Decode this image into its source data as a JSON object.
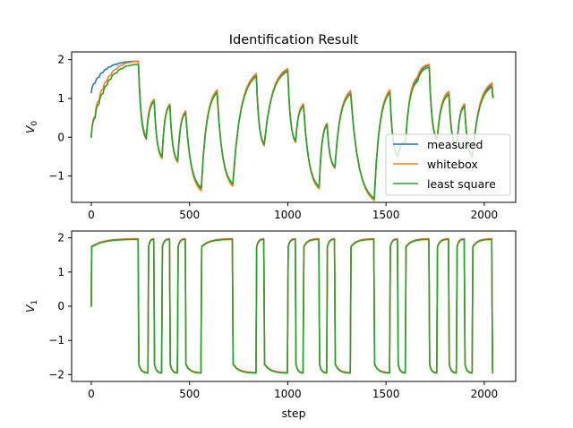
{
  "chart_data": [
    {
      "type": "line",
      "title": "Identification Result",
      "xlabel": "",
      "ylabel": "V",
      "ylabel_sub": "0",
      "xlim": [
        -100,
        2160
      ],
      "ylim": [
        -1.68,
        2.2
      ],
      "xticks": [
        0,
        500,
        1000,
        1500,
        2000
      ],
      "yticks": [
        -1,
        0,
        1,
        2
      ],
      "xtick_labels": [
        "0",
        "500",
        "1000",
        "1500",
        "2000"
      ],
      "ytick_labels": [
        "−1",
        "0",
        "1",
        "2"
      ],
      "legend": "lower right",
      "series": [
        {
          "name": "measured",
          "color": "#1f77b4",
          "points": [
            [
              0,
              1.15
            ],
            [
              20,
              1.4
            ],
            [
              40,
              1.55
            ],
            [
              60,
              1.67
            ],
            [
              80,
              1.76
            ],
            [
              100,
              1.82
            ],
            [
              130,
              1.88
            ],
            [
              160,
              1.92
            ],
            [
              200,
              1.95
            ],
            [
              240,
              1.96
            ],
            [
              280,
              0.02
            ],
            [
              320,
              0.96
            ],
            [
              360,
              -0.52
            ],
            [
              400,
              0.85
            ],
            [
              440,
              -0.63
            ],
            [
              480,
              0.66
            ],
            [
              560,
              -1.35
            ],
            [
              640,
              1.2
            ],
            [
              720,
              -1.23
            ],
            [
              840,
              1.62
            ],
            [
              880,
              -0.2
            ],
            [
              1000,
              1.75
            ],
            [
              1040,
              -0.12
            ],
            [
              1080,
              0.85
            ],
            [
              1160,
              -1.3
            ],
            [
              1200,
              0.36
            ],
            [
              1240,
              -0.78
            ],
            [
              1320,
              1.18
            ],
            [
              1440,
              -1.6
            ],
            [
              1520,
              1.2
            ],
            [
              1560,
              -0.5
            ],
            [
              1600,
              -0.12
            ],
            [
              1660,
              1.5
            ],
            [
              1720,
              1.85
            ],
            [
              1760,
              -0.05
            ],
            [
              1820,
              1.16
            ],
            [
              1860,
              -0.3
            ],
            [
              1900,
              0.85
            ],
            [
              1940,
              -0.5
            ],
            [
              2040,
              1.35
            ],
            [
              2045,
              1.05
            ]
          ]
        },
        {
          "name": "whitebox",
          "color": "#ff7f0e",
          "points": [
            [
              0,
              0.0
            ],
            [
              20,
              0.55
            ],
            [
              40,
              0.95
            ],
            [
              60,
              1.24
            ],
            [
              80,
              1.45
            ],
            [
              100,
              1.6
            ],
            [
              130,
              1.76
            ],
            [
              160,
              1.86
            ],
            [
              200,
              1.93
            ],
            [
              240,
              1.96
            ],
            [
              280,
              0.0
            ],
            [
              320,
              0.98
            ],
            [
              360,
              -0.55
            ],
            [
              400,
              0.86
            ],
            [
              440,
              -0.65
            ],
            [
              480,
              0.68
            ],
            [
              560,
              -1.38
            ],
            [
              640,
              1.22
            ],
            [
              720,
              -1.26
            ],
            [
              840,
              1.64
            ],
            [
              880,
              -0.22
            ],
            [
              1000,
              1.77
            ],
            [
              1040,
              -0.14
            ],
            [
              1080,
              0.86
            ],
            [
              1160,
              -1.33
            ],
            [
              1200,
              0.36
            ],
            [
              1240,
              -0.8
            ],
            [
              1320,
              1.2
            ],
            [
              1440,
              -1.63
            ],
            [
              1520,
              1.22
            ],
            [
              1560,
              -0.52
            ],
            [
              1600,
              -0.14
            ],
            [
              1660,
              1.55
            ],
            [
              1720,
              1.88
            ],
            [
              1760,
              -0.06
            ],
            [
              1820,
              1.18
            ],
            [
              1860,
              -0.32
            ],
            [
              1900,
              0.86
            ],
            [
              1940,
              -0.52
            ],
            [
              2040,
              1.4
            ],
            [
              2045,
              1.08
            ]
          ]
        },
        {
          "name": "least square",
          "color": "#2ca02c",
          "points": [
            [
              0,
              0.0
            ],
            [
              20,
              0.5
            ],
            [
              40,
              0.86
            ],
            [
              60,
              1.13
            ],
            [
              80,
              1.34
            ],
            [
              100,
              1.5
            ],
            [
              130,
              1.66
            ],
            [
              160,
              1.77
            ],
            [
              200,
              1.85
            ],
            [
              240,
              1.88
            ],
            [
              280,
              -0.05
            ],
            [
              320,
              0.92
            ],
            [
              360,
              -0.5
            ],
            [
              400,
              0.82
            ],
            [
              440,
              -0.6
            ],
            [
              480,
              0.63
            ],
            [
              560,
              -1.3
            ],
            [
              640,
              1.15
            ],
            [
              720,
              -1.2
            ],
            [
              840,
              1.57
            ],
            [
              880,
              -0.18
            ],
            [
              1000,
              1.7
            ],
            [
              1040,
              -0.1
            ],
            [
              1080,
              0.8
            ],
            [
              1160,
              -1.27
            ],
            [
              1200,
              0.32
            ],
            [
              1240,
              -0.76
            ],
            [
              1320,
              1.12
            ],
            [
              1440,
              -1.58
            ],
            [
              1520,
              1.15
            ],
            [
              1560,
              -0.48
            ],
            [
              1600,
              -0.1
            ],
            [
              1660,
              1.44
            ],
            [
              1720,
              1.8
            ],
            [
              1760,
              -0.08
            ],
            [
              1820,
              1.1
            ],
            [
              1860,
              -0.28
            ],
            [
              1900,
              0.8
            ],
            [
              1940,
              -0.48
            ],
            [
              2040,
              1.3
            ],
            [
              2045,
              1.02
            ]
          ]
        }
      ]
    },
    {
      "type": "line",
      "title": "",
      "xlabel": "step",
      "ylabel": "V",
      "ylabel_sub": "1",
      "xlim": [
        -100,
        2160
      ],
      "ylim": [
        -2.2,
        2.2
      ],
      "xticks": [
        0,
        500,
        1000,
        1500,
        2000
      ],
      "yticks": [
        -2,
        -1,
        0,
        1,
        2
      ],
      "xtick_labels": [
        "0",
        "500",
        "1000",
        "1500",
        "2000"
      ],
      "ytick_labels": [
        "−2",
        "−1",
        "0",
        "1",
        "2"
      ],
      "switch_steps": [
        0,
        240,
        290,
        320,
        360,
        400,
        440,
        480,
        560,
        720,
        840,
        880,
        1000,
        1040,
        1080,
        1160,
        1200,
        1240,
        1320,
        1440,
        1520,
        1560,
        1600,
        1720,
        1760,
        1820,
        1860,
        1900,
        1940,
        2040,
        2045
      ],
      "series": [
        {
          "name": "measured",
          "color": "#1f77b4"
        },
        {
          "name": "whitebox",
          "color": "#ff7f0e"
        },
        {
          "name": "least square",
          "color": "#2ca02c"
        }
      ]
    }
  ]
}
